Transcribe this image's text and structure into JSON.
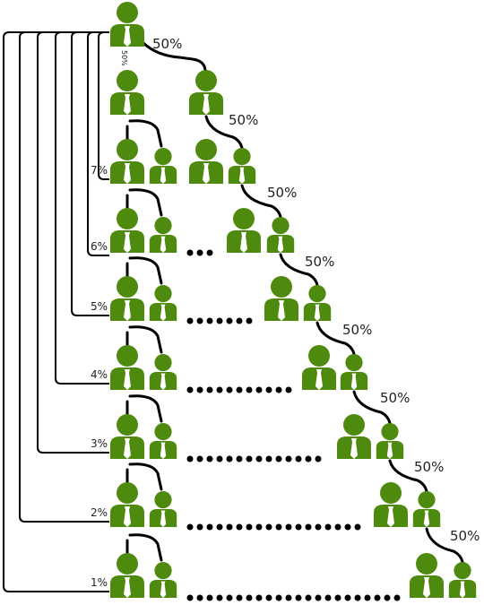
{
  "branch_labels": [
    "50%",
    "50%",
    "50%",
    "50%",
    "50%",
    "50%",
    "50%",
    "50%"
  ],
  "side_label": "50%",
  "level_labels": [
    "7%",
    "6%",
    "5%",
    "4%",
    "3%",
    "2%",
    "1%"
  ]
}
